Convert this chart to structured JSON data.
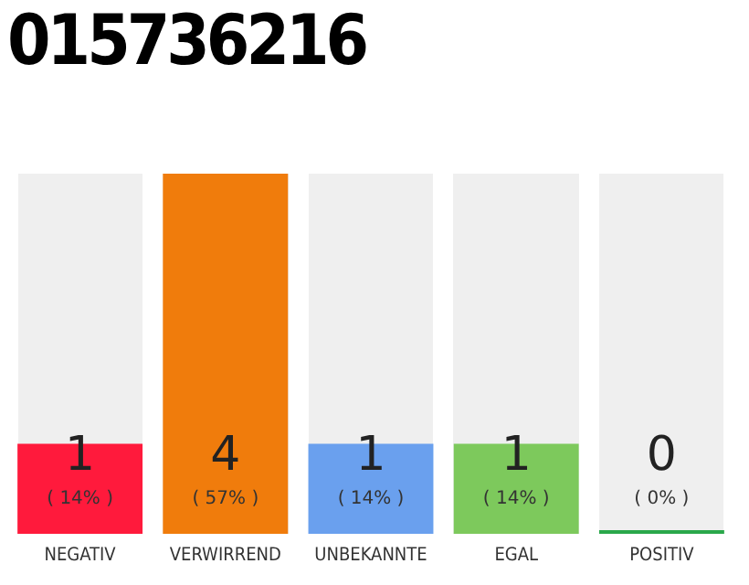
{
  "chart_data": {
    "type": "bar",
    "title": "015736216",
    "categories": [
      "NEGATIV",
      "VERWIRREND",
      "UNBEKANNTE",
      "EGAL",
      "POSITIV"
    ],
    "values": [
      1,
      4,
      1,
      1,
      0
    ],
    "colors": [
      "#ff1a3c",
      "#f07c0c",
      "#6aa0ee",
      "#7dc95c",
      "#2aa84a"
    ],
    "ylim": [
      0,
      4
    ],
    "tick_labels": "x",
    "grid": false,
    "legend": false,
    "data_labels": true,
    "annotations": [
      "( 14% )",
      "( 57% )",
      "( 14% )",
      "( 14% )",
      "( 0% )"
    ]
  }
}
